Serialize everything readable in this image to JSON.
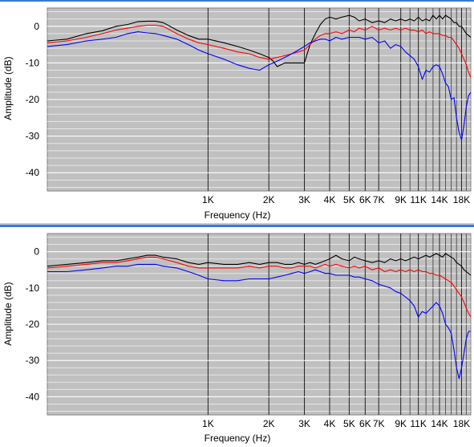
{
  "panels": [
    {
      "xlabel": "Frequency (Hz)",
      "ylabel": "Amplitude (dB)"
    },
    {
      "xlabel": "Frequency (Hz)",
      "ylabel": "Amplitude (dB)"
    }
  ],
  "chart_data": [
    {
      "type": "line",
      "xlabel": "Frequency (Hz)",
      "ylabel": "Amplitude (dB)",
      "x_scale": "log",
      "xlim": [
        160,
        20000
      ],
      "ylim": [
        -45,
        5
      ],
      "yticks": [
        0,
        -10,
        -20,
        -30,
        -40
      ],
      "ytick_labels": [
        "0",
        "-10",
        "-20",
        "-30",
        "-40"
      ],
      "xticks": [
        1000,
        2000,
        3000,
        4000,
        5000,
        6000,
        7000,
        9000,
        11000,
        14000,
        18000
      ],
      "xtick_labels": [
        "1K",
        "2K",
        "3K",
        "4K",
        "5K",
        "6K",
        "7K",
        "9K",
        "11K",
        "14K",
        "18K"
      ],
      "grid": true,
      "series": [
        {
          "color": "#000000",
          "x": [
            160,
            200,
            250,
            300,
            350,
            400,
            450,
            500,
            550,
            600,
            700,
            800,
            900,
            1000,
            1200,
            1400,
            1600,
            1800,
            2000,
            2100,
            2200,
            2400,
            2600,
            2800,
            3000,
            3200,
            3400,
            3600,
            3800,
            4000,
            4300,
            4600,
            5000,
            5300,
            5600,
            6000,
            6500,
            7000,
            7500,
            8000,
            8500,
            9000,
            9500,
            10000,
            10500,
            11000,
            11500,
            12000,
            12500,
            13000,
            13500,
            14000,
            14500,
            15000,
            15500,
            16000,
            16500,
            17000,
            17500,
            18000,
            18500,
            19000,
            19500,
            20000
          ],
          "y": [
            -4,
            -3.5,
            -2,
            -1.2,
            0,
            0.5,
            1.3,
            1.4,
            1.4,
            1,
            -1,
            -2.5,
            -3.5,
            -3.5,
            -4.5,
            -5.5,
            -6.5,
            -7.5,
            -8.5,
            -9.5,
            -11,
            -10,
            -10,
            -10,
            -10,
            -5,
            -2,
            0.5,
            2,
            2.5,
            2,
            2.5,
            3,
            2.5,
            1.5,
            2,
            1,
            1.5,
            1,
            2,
            1.5,
            2,
            1.5,
            2,
            1.5,
            2.5,
            1.5,
            2,
            1.5,
            3,
            2,
            3,
            2,
            3,
            2.5,
            2,
            1,
            1,
            0,
            0,
            -1,
            -2,
            -2.5,
            -3
          ]
        },
        {
          "color": "#ff0000",
          "x": [
            160,
            200,
            250,
            300,
            350,
            400,
            450,
            500,
            550,
            600,
            700,
            800,
            900,
            1000,
            1200,
            1400,
            1600,
            1800,
            2000,
            2200,
            2400,
            2600,
            2800,
            3000,
            3200,
            3400,
            3600,
            3800,
            4000,
            4300,
            4600,
            5000,
            5300,
            5600,
            6000,
            6500,
            7000,
            7500,
            8000,
            8500,
            9000,
            9500,
            10000,
            10500,
            11000,
            11500,
            12000,
            12500,
            13000,
            13500,
            14000,
            14500,
            15000,
            15500,
            16000,
            16500,
            17000,
            17500,
            18000,
            18500,
            19000,
            19500,
            20000
          ],
          "y": [
            -4.5,
            -4,
            -3,
            -2,
            -1,
            -0.5,
            0,
            0.3,
            0.3,
            0,
            -2,
            -3.5,
            -4.5,
            -5,
            -6,
            -7,
            -7.5,
            -8.5,
            -9,
            -8.5,
            -8,
            -7.5,
            -7,
            -6.5,
            -5,
            -3.5,
            -2.5,
            -2,
            -2,
            -1.5,
            -2,
            -1,
            -1.5,
            -0.5,
            -1,
            0,
            -1,
            -0.5,
            -1,
            -0.5,
            -1,
            -0.5,
            -1,
            -1,
            -1.5,
            -1,
            -2,
            -1.5,
            -2,
            -2,
            -2,
            -2.5,
            -2.5,
            -3,
            -3,
            -4,
            -5,
            -6,
            -7.5,
            -9,
            -10.5,
            -12.5,
            -14
          ]
        },
        {
          "color": "#0000ff",
          "x": [
            160,
            200,
            250,
            300,
            350,
            400,
            450,
            500,
            550,
            600,
            700,
            800,
            900,
            1000,
            1200,
            1400,
            1600,
            1800,
            2000,
            2200,
            2400,
            2600,
            2800,
            3000,
            3200,
            3400,
            3600,
            3800,
            4000,
            4300,
            4600,
            5000,
            5300,
            5600,
            6000,
            6500,
            7000,
            7500,
            8000,
            8500,
            9000,
            9500,
            10000,
            10500,
            11000,
            11500,
            12000,
            12500,
            13000,
            13500,
            14000,
            14500,
            15000,
            15500,
            16000,
            16500,
            17000,
            17500,
            18000,
            18500,
            19000,
            19500,
            20000
          ],
          "y": [
            -5.5,
            -5,
            -4,
            -3.5,
            -3,
            -2,
            -1.5,
            -1.8,
            -2,
            -2.5,
            -3.5,
            -5,
            -6.5,
            -7.5,
            -9,
            -10.5,
            -11.5,
            -12,
            -10.5,
            -9.5,
            -8.5,
            -7.5,
            -6.5,
            -5.5,
            -4.5,
            -4,
            -3.5,
            -3.5,
            -4,
            -3,
            -3.5,
            -3,
            -3,
            -3,
            -3.5,
            -3,
            -4.5,
            -4,
            -6,
            -5,
            -5.5,
            -7,
            -8,
            -9,
            -11,
            -14.5,
            -12,
            -12.5,
            -11,
            -10.5,
            -11,
            -13,
            -15.5,
            -16.5,
            -20,
            -19.5,
            -25,
            -29,
            -31,
            -27,
            -22,
            -19,
            -18
          ]
        }
      ]
    },
    {
      "type": "line",
      "xlabel": "Frequency (Hz)",
      "ylabel": "Amplitude (dB)",
      "x_scale": "log",
      "xlim": [
        160,
        20000
      ],
      "ylim": [
        -45,
        5
      ],
      "yticks": [
        0,
        -10,
        -20,
        -30,
        -40
      ],
      "ytick_labels": [
        "0",
        "-10",
        "-20",
        "-30",
        "-40"
      ],
      "xticks": [
        1000,
        2000,
        3000,
        4000,
        5000,
        6000,
        7000,
        9000,
        11000,
        14000,
        18000
      ],
      "xtick_labels": [
        "1K",
        "2K",
        "3K",
        "4K",
        "5K",
        "6K",
        "7K",
        "9K",
        "11K",
        "14K",
        "18K"
      ],
      "grid": true,
      "series": [
        {
          "color": "#000000",
          "x": [
            160,
            200,
            250,
            300,
            350,
            400,
            450,
            500,
            550,
            600,
            700,
            800,
            900,
            1000,
            1200,
            1400,
            1600,
            1800,
            2000,
            2200,
            2400,
            2600,
            2800,
            3000,
            3200,
            3400,
            3600,
            3800,
            4000,
            4300,
            4600,
            5000,
            5300,
            5600,
            6000,
            6500,
            7000,
            7500,
            8000,
            8500,
            9000,
            9500,
            10000,
            10500,
            11000,
            11500,
            12000,
            12500,
            13000,
            13500,
            14000,
            14500,
            15000,
            15500,
            16000,
            16500,
            17000,
            17500,
            18000,
            18500,
            19000,
            19500,
            20000
          ],
          "y": [
            -4,
            -3.5,
            -3,
            -2.5,
            -2.5,
            -2,
            -1.5,
            -1,
            -1,
            -1.5,
            -2,
            -3,
            -3.5,
            -3,
            -3.5,
            -3.5,
            -3,
            -3.5,
            -3,
            -3,
            -3.5,
            -3.5,
            -3,
            -3.5,
            -3,
            -3.5,
            -3,
            -2.5,
            -2,
            -1,
            -2,
            -2.5,
            -1.5,
            -2,
            -2.5,
            -3,
            -2.5,
            -3,
            -2,
            -2.5,
            -2,
            -2.5,
            -2,
            -1.5,
            -2,
            -1.5,
            -1,
            -1.5,
            -1,
            -0.5,
            -1,
            -1.5,
            -0.5,
            -1,
            -1.5,
            -2,
            -3,
            -3.5,
            -4,
            -5,
            -5.5,
            -6,
            -6.5
          ]
        },
        {
          "color": "#ff0000",
          "x": [
            160,
            200,
            250,
            300,
            350,
            400,
            450,
            500,
            550,
            600,
            700,
            800,
            900,
            1000,
            1200,
            1400,
            1600,
            1800,
            2000,
            2200,
            2400,
            2600,
            2800,
            3000,
            3200,
            3400,
            3600,
            3800,
            4000,
            4300,
            4600,
            5000,
            5300,
            5600,
            6000,
            6500,
            7000,
            7500,
            8000,
            8500,
            9000,
            9500,
            10000,
            10500,
            11000,
            11500,
            12000,
            12500,
            13000,
            13500,
            14000,
            14500,
            15000,
            15500,
            16000,
            16500,
            17000,
            17500,
            18000,
            18500,
            19000,
            19500,
            20000
          ],
          "y": [
            -4.5,
            -4,
            -3.5,
            -3,
            -3,
            -2.5,
            -2,
            -1.5,
            -1.5,
            -2,
            -3,
            -4,
            -4.5,
            -4.5,
            -4.5,
            -4.5,
            -4,
            -4.5,
            -4,
            -4,
            -4.5,
            -4.5,
            -4,
            -4,
            -4,
            -4.5,
            -4,
            -3.5,
            -4,
            -3.5,
            -4,
            -4.5,
            -4,
            -4.5,
            -4,
            -5,
            -4.5,
            -5.5,
            -5,
            -5.5,
            -5,
            -5.5,
            -5,
            -5.5,
            -5,
            -5.5,
            -5.5,
            -6,
            -6,
            -6.5,
            -6.5,
            -7,
            -7.5,
            -8,
            -8.5,
            -9.5,
            -10.5,
            -11.5,
            -12.5,
            -14,
            -15.5,
            -17,
            -18
          ]
        },
        {
          "color": "#0000ff",
          "x": [
            160,
            200,
            250,
            300,
            350,
            400,
            450,
            500,
            550,
            600,
            700,
            800,
            900,
            1000,
            1200,
            1400,
            1600,
            1800,
            2000,
            2200,
            2400,
            2600,
            2800,
            3000,
            3200,
            3400,
            3600,
            3800,
            4000,
            4300,
            4600,
            5000,
            5300,
            5600,
            6000,
            6500,
            7000,
            7500,
            8000,
            8500,
            9000,
            9500,
            10000,
            10500,
            11000,
            11500,
            12000,
            12500,
            13000,
            13500,
            14000,
            14500,
            15000,
            15500,
            16000,
            16500,
            17000,
            17500,
            18000,
            18500,
            19000,
            19500,
            20000
          ],
          "y": [
            -5.5,
            -5.5,
            -5,
            -4.5,
            -4,
            -4,
            -3.5,
            -3.5,
            -3.5,
            -4,
            -4.5,
            -5.5,
            -6.5,
            -7.5,
            -8,
            -8,
            -7.5,
            -7.5,
            -7.5,
            -7,
            -6.5,
            -6,
            -5.5,
            -6,
            -5.5,
            -5,
            -5.5,
            -6,
            -6,
            -6.5,
            -6.5,
            -6.5,
            -7,
            -7,
            -7.5,
            -8,
            -9,
            -9.5,
            -10,
            -11,
            -11.5,
            -12.5,
            -13.5,
            -15,
            -18,
            -16.5,
            -17,
            -16,
            -15,
            -14,
            -15,
            -17,
            -20,
            -21,
            -22.5,
            -27,
            -32,
            -35,
            -32,
            -28,
            -24,
            -22,
            -22
          ]
        }
      ]
    }
  ]
}
